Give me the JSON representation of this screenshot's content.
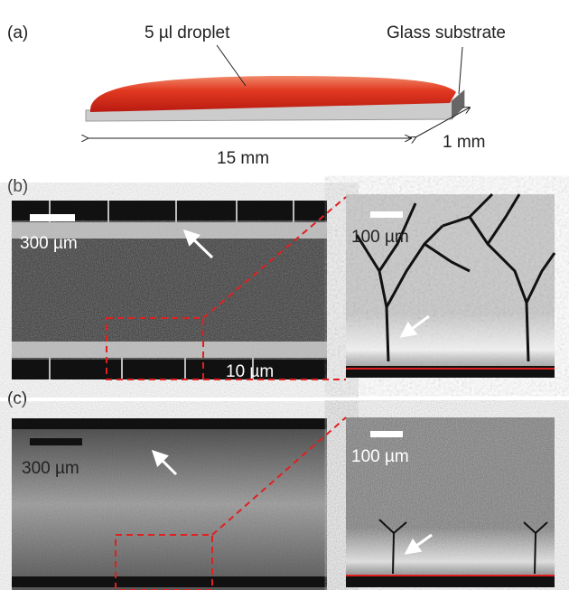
{
  "panel_a": {
    "label": "(a)",
    "droplet": "5 µl droplet",
    "substrate": "Glass substrate",
    "length": "15 mm",
    "width": "1 mm"
  },
  "panel_b": {
    "label": "(b)",
    "scale_left": "300 µm",
    "scale_right": "100 µm",
    "scale_inset": "10 µm"
  },
  "panel_c": {
    "label": "(c)",
    "scale_left": "300 µm",
    "scale_right": "100 µm"
  }
}
